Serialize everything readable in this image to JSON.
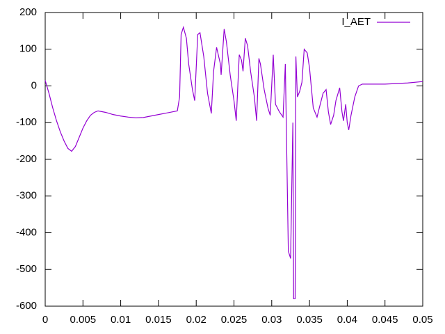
{
  "chart_data": {
    "type": "line",
    "x": [
      0,
      0.0005,
      0.001,
      0.0015,
      0.002,
      0.0025,
      0.003,
      0.0035,
      0.004,
      0.0045,
      0.005,
      0.0055,
      0.006,
      0.0065,
      0.007,
      0.008,
      0.009,
      0.01,
      0.011,
      0.012,
      0.013,
      0.014,
      0.015,
      0.016,
      0.017,
      0.0175,
      0.0178,
      0.018,
      0.0183,
      0.0187,
      0.019,
      0.0195,
      0.0198,
      0.0202,
      0.0205,
      0.021,
      0.0215,
      0.022,
      0.0223,
      0.0227,
      0.0232,
      0.0233,
      0.0237,
      0.024,
      0.0245,
      0.025,
      0.0253,
      0.0257,
      0.026,
      0.0262,
      0.0265,
      0.0268,
      0.0272,
      0.0277,
      0.028,
      0.0283,
      0.0285,
      0.029,
      0.0295,
      0.0298,
      0.0302,
      0.0305,
      0.031,
      0.0315,
      0.0318,
      0.0322,
      0.0325,
      0.0328,
      0.0329,
      0.0331,
      0.0332,
      0.0334,
      0.0337,
      0.034,
      0.0343,
      0.0347,
      0.035,
      0.0355,
      0.036,
      0.0363,
      0.0368,
      0.0372,
      0.0375,
      0.0378,
      0.0382,
      0.0385,
      0.039,
      0.0393,
      0.0395,
      0.0398,
      0.04,
      0.0402,
      0.0405,
      0.041,
      0.0415,
      0.042,
      0.045,
      0.048,
      0.05
    ],
    "series": [
      {
        "name": "I_AET",
        "color": "#9400d3",
        "values": [
          15,
          -20,
          -60,
          -95,
          -125,
          -150,
          -170,
          -178,
          -165,
          -140,
          -115,
          -95,
          -80,
          -72,
          -68,
          -72,
          -78,
          -82,
          -85,
          -87,
          -86,
          -82,
          -78,
          -74,
          -70,
          -68,
          -30,
          140,
          160,
          130,
          60,
          -10,
          -40,
          140,
          145,
          80,
          -20,
          -75,
          40,
          105,
          60,
          30,
          155,
          120,
          30,
          -40,
          -95,
          85,
          70,
          40,
          130,
          110,
          40,
          -30,
          -95,
          75,
          60,
          -10,
          -60,
          -80,
          85,
          -50,
          -70,
          -85,
          60,
          -450,
          -470,
          -100,
          -580,
          -580,
          80,
          -30,
          -15,
          10,
          100,
          90,
          50,
          -60,
          -85,
          -60,
          -20,
          -10,
          -70,
          -105,
          -80,
          -40,
          -5,
          -70,
          -95,
          -50,
          -100,
          -120,
          -80,
          -30,
          0,
          5,
          5,
          8,
          12
        ]
      }
    ],
    "xlim": [
      0,
      0.05
    ],
    "xticks": [
      0,
      0.005,
      0.01,
      0.015,
      0.02,
      0.025,
      0.03,
      0.035,
      0.04,
      0.045,
      0.05
    ],
    "ylim": [
      -600,
      200
    ],
    "yticks": [
      -600,
      -500,
      -400,
      -300,
      -200,
      -100,
      0,
      100,
      200
    ],
    "legend": "top-right"
  }
}
